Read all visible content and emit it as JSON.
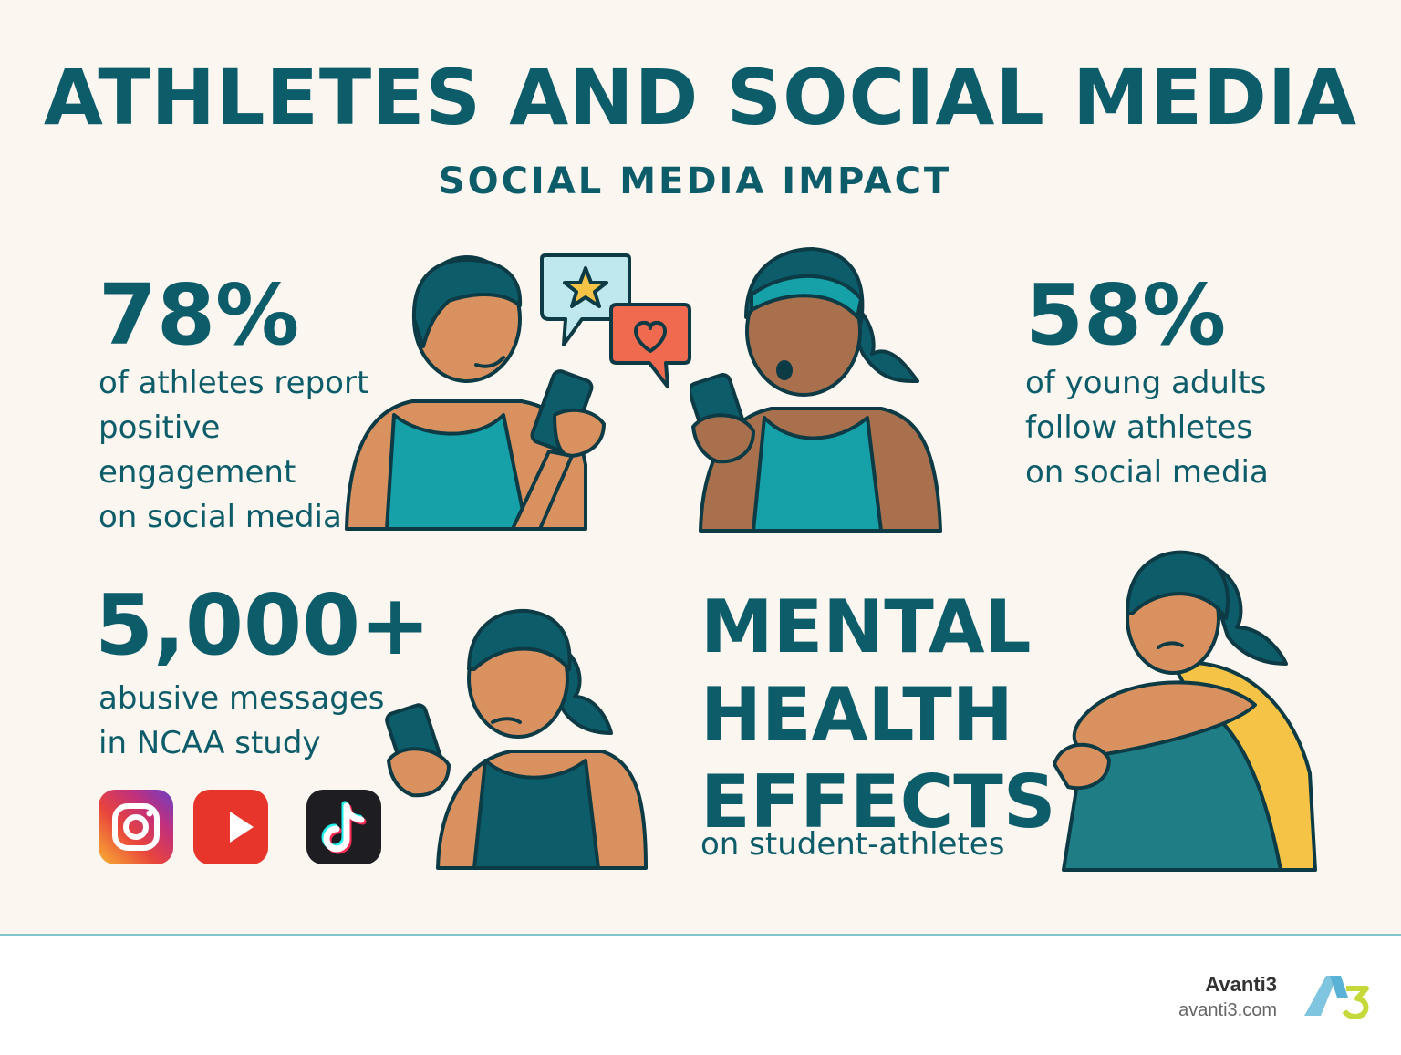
{
  "title": "ATHLETES AND SOCIAL MEDIA",
  "subtitle": "SOCIAL MEDIA IMPACT",
  "stats": [
    {
      "value": "78%",
      "description": "of athletes report\npositive\nengagement\non social media"
    },
    {
      "value": "58%",
      "description": "of young adults\nfollow athletes\non social media"
    },
    {
      "value": "5,000+",
      "description": "abusive messages\nin NCAA study"
    }
  ],
  "mental_health": {
    "heading": "MENTAL\nHEALTH\nEFFECTS",
    "subtext": "on student-athletes"
  },
  "platform_icons": [
    "instagram-icon",
    "youtube-icon",
    "tiktok-icon"
  ],
  "brand": {
    "name": "Avanti3",
    "url": "avanti3.com"
  },
  "colors": {
    "teal": "#0d5c6a",
    "background": "#fbf6ef",
    "accent_teal": "#16a0a8",
    "skin": "#d9915f",
    "yellow": "#f5c447",
    "heart": "#ef6a4f"
  }
}
